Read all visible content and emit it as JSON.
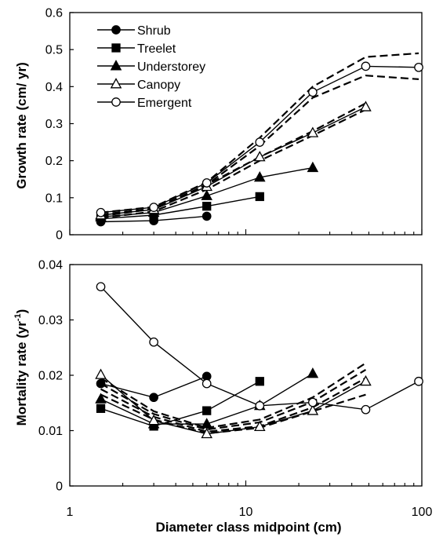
{
  "chart_data": [
    {
      "type": "line",
      "panel": "top",
      "ylabel": "Growth rate (cm/ yr)",
      "xscale": "log",
      "xlim": [
        1,
        100
      ],
      "ylim": [
        0,
        0.6
      ],
      "yticks": [
        "0",
        "0.1",
        "0.2",
        "0.3",
        "0.4",
        "0.5",
        "0.6"
      ],
      "legend": {
        "placement": "top-left"
      },
      "series": [
        {
          "name": "Shrub",
          "marker": "filled-circle",
          "points": [
            [
              1.5,
              0.035
            ],
            [
              3,
              0.038
            ],
            [
              6,
              0.05
            ]
          ]
        },
        {
          "name": "Treelet",
          "marker": "filled-square",
          "points": [
            [
              1.5,
              0.043
            ],
            [
              3,
              0.053
            ],
            [
              6,
              0.077
            ],
            [
              12,
              0.103
            ]
          ]
        },
        {
          "name": "Understorey",
          "marker": "filled-triangle",
          "points": [
            [
              1.5,
              0.048
            ],
            [
              3,
              0.06
            ],
            [
              6,
              0.105
            ],
            [
              12,
              0.155
            ],
            [
              24,
              0.181
            ]
          ]
        },
        {
          "name": "Canopy",
          "marker": "open-triangle",
          "points": [
            [
              1.5,
              0.053
            ],
            [
              3,
              0.068
            ],
            [
              6,
              0.13
            ],
            [
              12,
              0.21
            ],
            [
              24,
              0.275
            ],
            [
              48,
              0.345
            ]
          ]
        },
        {
          "name": "Emergent",
          "marker": "open-circle",
          "points": [
            [
              1.5,
              0.06
            ],
            [
              3,
              0.074
            ],
            [
              6,
              0.14
            ],
            [
              12,
              0.25
            ],
            [
              24,
              0.385
            ],
            [
              48,
              0.455
            ],
            [
              96,
              0.452
            ]
          ]
        }
      ],
      "dashed_lines": [
        {
          "points": [
            [
              1.5,
              0.05
            ],
            [
              3,
              0.07
            ],
            [
              6,
              0.135
            ],
            [
              12,
              0.21
            ],
            [
              24,
              0.28
            ],
            [
              48,
              0.355
            ]
          ]
        },
        {
          "points": [
            [
              1.5,
              0.045
            ],
            [
              3,
              0.063
            ],
            [
              6,
              0.122
            ],
            [
              12,
              0.2
            ],
            [
              24,
              0.268
            ],
            [
              48,
              0.338
            ]
          ]
        },
        {
          "points": [
            [
              1.5,
              0.06
            ],
            [
              3,
              0.075
            ],
            [
              6,
              0.142
            ],
            [
              12,
              0.262
            ],
            [
              24,
              0.4
            ],
            [
              48,
              0.48
            ],
            [
              96,
              0.49
            ]
          ]
        },
        {
          "points": [
            [
              1.5,
              0.055
            ],
            [
              3,
              0.07
            ],
            [
              6,
              0.135
            ],
            [
              12,
              0.24
            ],
            [
              24,
              0.37
            ],
            [
              48,
              0.43
            ],
            [
              96,
              0.42
            ]
          ]
        }
      ]
    },
    {
      "type": "line",
      "panel": "bottom",
      "ylabel": "Mortality rate (yr",
      "ylabel_superscript": "-1",
      "ylabel_suffix": ")",
      "xlabel": "Diameter class midpoint (cm)",
      "xscale": "log",
      "xlim": [
        1,
        100
      ],
      "ylim": [
        0,
        0.04
      ],
      "xticks": [
        "1",
        "10",
        "100"
      ],
      "yticks": [
        "0",
        "0.01",
        "0.02",
        "0.03",
        "0.04"
      ],
      "series": [
        {
          "name": "Shrub",
          "marker": "filled-circle",
          "points": [
            [
              1.5,
              0.0185
            ],
            [
              3,
              0.016
            ],
            [
              6,
              0.0198
            ]
          ]
        },
        {
          "name": "Treelet",
          "marker": "filled-square",
          "points": [
            [
              1.5,
              0.014
            ],
            [
              3,
              0.0108
            ],
            [
              6,
              0.0136
            ],
            [
              12,
              0.0189
            ]
          ]
        },
        {
          "name": "Understorey",
          "marker": "filled-triangle",
          "points": [
            [
              1.5,
              0.0157
            ],
            [
              3,
              0.0112
            ],
            [
              6,
              0.0112
            ],
            [
              12,
              0.0145
            ],
            [
              24,
              0.0203
            ]
          ]
        },
        {
          "name": "Canopy",
          "marker": "open-triangle",
          "points": [
            [
              1.5,
              0.0201
            ],
            [
              3,
              0.0118
            ],
            [
              6,
              0.0094
            ],
            [
              12,
              0.0107
            ],
            [
              24,
              0.0136
            ],
            [
              48,
              0.0189
            ]
          ]
        },
        {
          "name": "Emergent",
          "marker": "open-circle",
          "points": [
            [
              1.5,
              0.036
            ],
            [
              3,
              0.026
            ],
            [
              6,
              0.0185
            ],
            [
              12,
              0.0145
            ],
            [
              24,
              0.0151
            ],
            [
              48,
              0.0138
            ],
            [
              96,
              0.0189
            ]
          ]
        }
      ],
      "dashed_lines": [
        {
          "points": [
            [
              1.5,
              0.0195
            ],
            [
              3,
              0.0135
            ],
            [
              6,
              0.0105
            ],
            [
              12,
              0.012
            ],
            [
              24,
              0.016
            ],
            [
              48,
              0.0222
            ]
          ]
        },
        {
          "points": [
            [
              1.5,
              0.0175
            ],
            [
              3,
              0.0125
            ],
            [
              6,
              0.0098
            ],
            [
              12,
              0.0108
            ],
            [
              24,
              0.0142
            ],
            [
              48,
              0.0195
            ]
          ]
        },
        {
          "points": [
            [
              1.5,
              0.0165
            ],
            [
              3,
              0.012
            ],
            [
              6,
              0.0095
            ],
            [
              12,
              0.0105
            ],
            [
              24,
              0.0135
            ],
            [
              48,
              0.0165
            ]
          ]
        },
        {
          "points": [
            [
              1.5,
              0.0185
            ],
            [
              3,
              0.013
            ],
            [
              6,
              0.0102
            ],
            [
              12,
              0.0115
            ],
            [
              24,
              0.0152
            ],
            [
              48,
              0.021
            ]
          ]
        }
      ]
    }
  ]
}
